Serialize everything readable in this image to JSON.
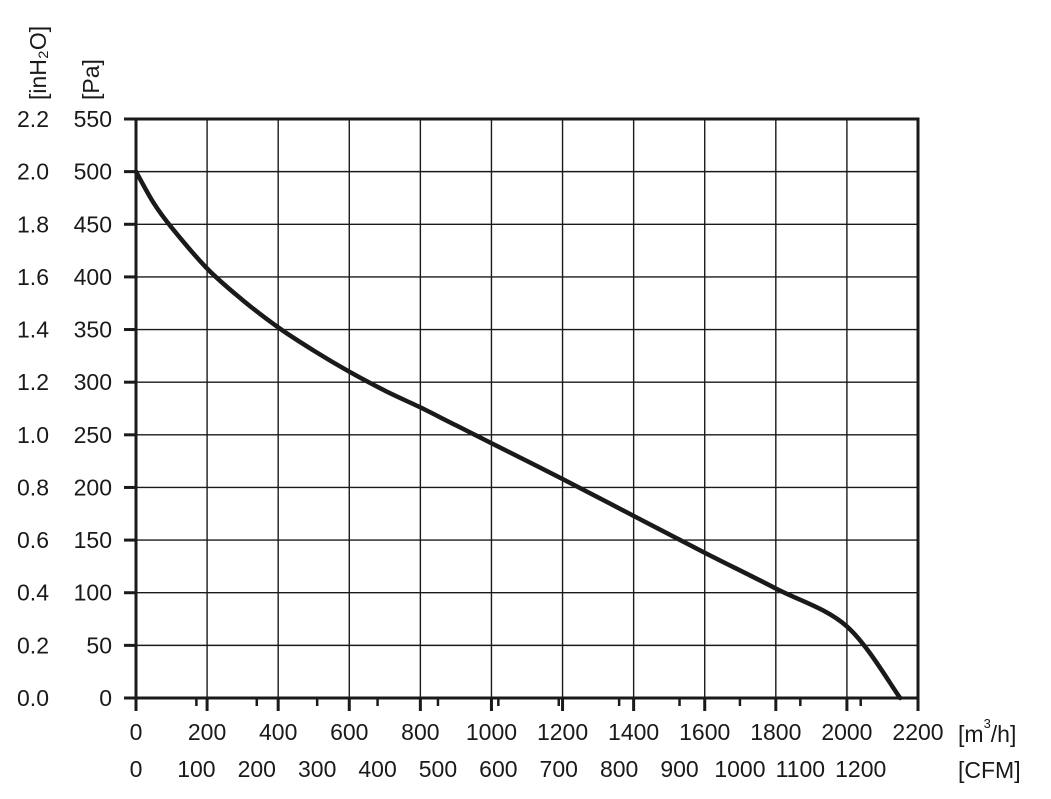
{
  "chart_data": {
    "type": "line",
    "title": "",
    "grid": true,
    "x_axis_primary": {
      "unit_base": "[m",
      "unit_sup": "3",
      "unit_tail": "/h]",
      "range": [
        0,
        2200
      ],
      "ticks": [
        "0",
        "200",
        "400",
        "600",
        "800",
        "1000",
        "1200",
        "1400",
        "1600",
        "1800",
        "2000",
        "2200"
      ]
    },
    "x_axis_secondary": {
      "unit": "[CFM]",
      "ticks": [
        "0",
        "100",
        "200",
        "300",
        "400",
        "500",
        "600",
        "700",
        "800",
        "900",
        "1000",
        "1100",
        "1200"
      ]
    },
    "y_axis_primary": {
      "unit": "[Pa]",
      "range": [
        0,
        550
      ],
      "ticks": [
        "0",
        "50",
        "100",
        "150",
        "200",
        "250",
        "300",
        "350",
        "400",
        "450",
        "500",
        "550"
      ]
    },
    "y_axis_secondary": {
      "unit": "[inH₂O]",
      "ticks": [
        "0.0",
        "0.2",
        "0.4",
        "0.6",
        "0.8",
        "1.0",
        "1.2",
        "1.4",
        "1.6",
        "1.8",
        "2.0",
        "2.2"
      ]
    },
    "series": [
      {
        "x": [
          0,
          50,
          100,
          200,
          300,
          400,
          500,
          600,
          700,
          800,
          900,
          1000,
          1200,
          1400,
          1600,
          1800,
          2000,
          2150
        ],
        "y": [
          500,
          470,
          447,
          408,
          378,
          352,
          330,
          310,
          292,
          276,
          259,
          242,
          208,
          173,
          138,
          104,
          68,
          0
        ]
      }
    ]
  }
}
